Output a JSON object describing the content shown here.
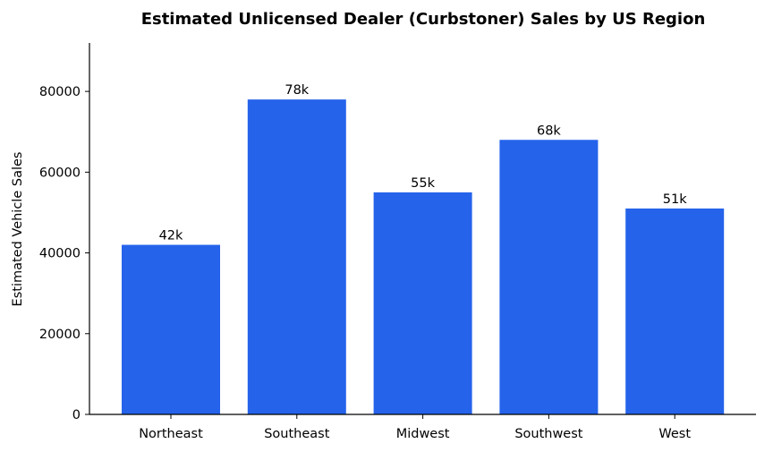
{
  "chart_data": {
    "type": "bar",
    "title": "Estimated Unlicensed Dealer (Curbstoner) Sales by US Region",
    "xlabel": "",
    "ylabel": "Estimated Vehicle Sales",
    "categories": [
      "Northeast",
      "Southeast",
      "Midwest",
      "Southwest",
      "West"
    ],
    "values": [
      42000,
      78000,
      55000,
      68000,
      51000
    ],
    "bar_labels": [
      "42k",
      "78k",
      "55k",
      "68k",
      "51k"
    ],
    "yticks": [
      0,
      20000,
      40000,
      60000,
      80000
    ],
    "ytick_labels": [
      "0",
      "20000",
      "40000",
      "60000",
      "80000"
    ],
    "ylim": [
      0,
      92000
    ],
    "grid": false,
    "legend": null,
    "bar_color": "#2563eb",
    "spines": [
      "left",
      "bottom"
    ]
  }
}
